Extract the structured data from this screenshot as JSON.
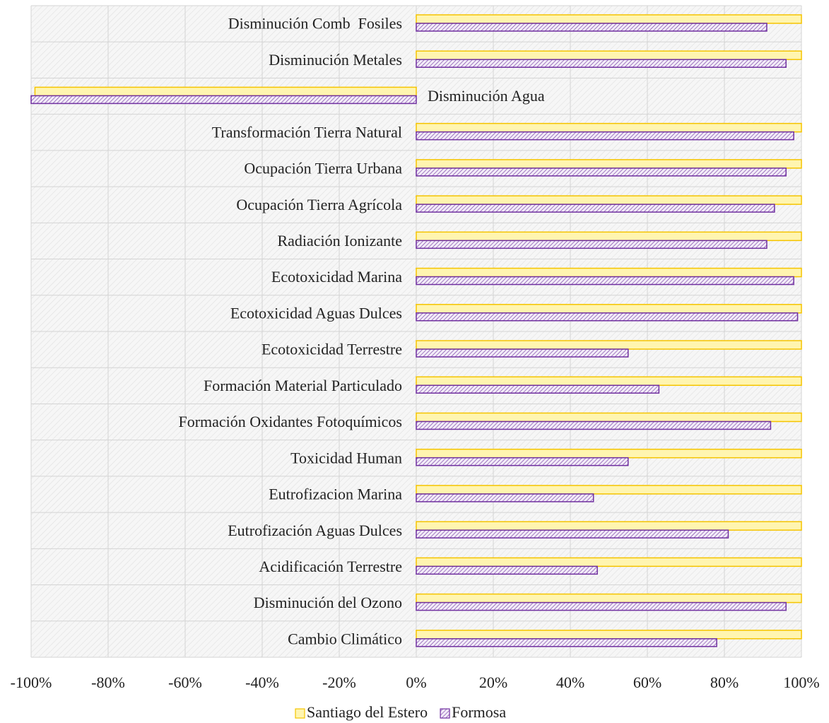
{
  "chart_data": {
    "type": "hbar",
    "categories": [
      "Disminución Comb  Fosiles",
      "Disminución Metales",
      "Disminución Agua",
      "Transformación Tierra Natural",
      "Ocupación Tierra Urbana",
      "Ocupación Tierra Agrícola",
      "Radiación Ionizante",
      "Ecotoxicidad Marina",
      "Ecotoxicidad Aguas Dulces",
      "Ecotoxicidad Terrestre",
      "Formación Material Particulado",
      "Formación Oxidantes Fotoquímicos",
      "Toxicidad Human",
      "Eutrofizacion Marina",
      "Eutrofización Aguas Dulces",
      "Acidificación Terrestre",
      "Disminución del Ozono",
      "Cambio Climático"
    ],
    "series": [
      {
        "name": "Santiago del Estero",
        "color": "#f5c400",
        "fill": "#fff5b0",
        "values": [
          100,
          100,
          -99,
          100,
          100,
          100,
          100,
          100,
          100,
          100,
          100,
          100,
          100,
          100,
          100,
          100,
          100,
          100
        ]
      },
      {
        "name": "Formosa",
        "color": "#7030a0",
        "fill": "hatch",
        "values": [
          91,
          96,
          -100,
          98,
          96,
          93,
          91,
          98,
          99,
          55,
          63,
          92,
          55,
          46,
          81,
          47,
          96,
          78
        ]
      }
    ],
    "xlim": [
      -100,
      100
    ],
    "xticks": [
      {
        "value": -100,
        "label": "-100%"
      },
      {
        "value": -80,
        "label": "-80%"
      },
      {
        "value": -60,
        "label": "-60%"
      },
      {
        "value": -40,
        "label": "-40%"
      },
      {
        "value": -20,
        "label": "-20%"
      },
      {
        "value": 0,
        "label": "0%"
      },
      {
        "value": 20,
        "label": "20%"
      },
      {
        "value": 40,
        "label": "40%"
      },
      {
        "value": 60,
        "label": "60%"
      },
      {
        "value": 80,
        "label": "80%"
      },
      {
        "value": 100,
        "label": "100%"
      }
    ],
    "grid": true,
    "legend": "bottom"
  }
}
